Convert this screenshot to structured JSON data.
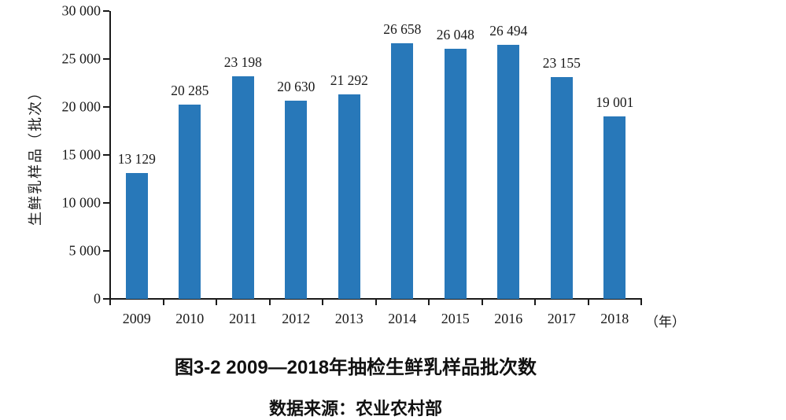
{
  "chart_data": {
    "type": "bar",
    "title": "图3-2  2009—2018年抽检生鲜乳样品批次数",
    "source": "数据来源：农业农村部",
    "ylabel": "生鲜乳样品（批次）",
    "x_unit_label": "（年）",
    "categories": [
      "2009",
      "2010",
      "2011",
      "2012",
      "2013",
      "2014",
      "2015",
      "2016",
      "2017",
      "2018"
    ],
    "values": [
      13129,
      20285,
      23198,
      20630,
      21292,
      26658,
      26048,
      26494,
      23155,
      19001
    ],
    "value_labels": [
      "13 129",
      "20 285",
      "23 198",
      "20 630",
      "21 292",
      "26 658",
      "26 048",
      "26 494",
      "23 155",
      "19 001"
    ],
    "y_ticks": [
      0,
      5000,
      10000,
      15000,
      20000,
      25000,
      30000
    ],
    "y_tick_labels": [
      "0",
      "5 000",
      "10 000",
      "15 000",
      "20 000",
      "25 000",
      "30 000"
    ],
    "ylim": [
      0,
      30000
    ],
    "bar_color": "#2878B9",
    "axis_color": "#1a1a1a",
    "grid": false,
    "legend": "none"
  }
}
